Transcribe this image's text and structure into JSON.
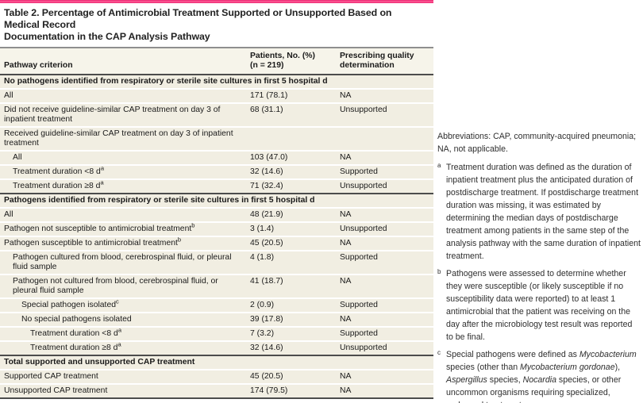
{
  "colors": {
    "accent": "#e8236f",
    "rule-gray": "#8f8f8f",
    "rule-dark": "#4c4c4c",
    "header-bg": "#f6f4ea",
    "row-bg": "#f1eee2",
    "text": "#1a1a1a"
  },
  "title": "Table 2. Percentage of Antimicrobial Treatment Supported or Unsupported Based on Medical Record\nDocumentation in the CAP Analysis Pathway",
  "table": {
    "columns": [
      {
        "label": "Pathway criterion"
      },
      {
        "label": "Patients, No. (%)\n(n = 219)"
      },
      {
        "label": "Prescribing quality\ndetermination"
      }
    ],
    "rows": [
      {
        "type": "section",
        "label": "No pathogens identified from respiratory or sterile site cultures in first 5 hospital d"
      },
      {
        "type": "row",
        "indent": 0,
        "label": "All",
        "value": "171 (78.1)",
        "det": "NA"
      },
      {
        "type": "row",
        "indent": 0,
        "label": "Did not receive guideline-similar CAP treatment on day 3 of inpatient treatment",
        "value": "68 (31.1)",
        "det": "Unsupported"
      },
      {
        "type": "row",
        "indent": 0,
        "label": "Received guideline-similar CAP treatment on day 3 of inpatient treatment",
        "value": "",
        "det": ""
      },
      {
        "type": "row",
        "indent": 1,
        "label": "All",
        "value": "103 (47.0)",
        "det": "NA"
      },
      {
        "type": "row",
        "indent": 1,
        "label": "Treatment duration <8 d",
        "sup": "a",
        "value": "32 (14.6)",
        "det": "Supported"
      },
      {
        "type": "row",
        "indent": 1,
        "label": "Treatment duration ≥8 d",
        "sup": "a",
        "value": "71 (32.4)",
        "det": "Unsupported"
      },
      {
        "type": "section",
        "rule": true,
        "label": "Pathogens identified from respiratory or sterile site cultures in first 5 hospital d"
      },
      {
        "type": "row",
        "indent": 0,
        "label": "All",
        "value": "48 (21.9)",
        "det": "NA"
      },
      {
        "type": "row",
        "indent": 0,
        "label": "Pathogen not susceptible to antimicrobial treatment",
        "sup": "b",
        "value": "3 (1.4)",
        "det": "Unsupported"
      },
      {
        "type": "row",
        "indent": 0,
        "label": "Pathogen susceptible to antimicrobial treatment",
        "sup": "b",
        "value": "45 (20.5)",
        "det": "NA"
      },
      {
        "type": "row",
        "indent": 1,
        "label": "Pathogen cultured from blood, cerebrospinal fluid, or pleural fluid sample",
        "value": "4 (1.8)",
        "det": "Supported"
      },
      {
        "type": "row",
        "indent": 1,
        "label": "Pathogen not cultured from blood, cerebrospinal fluid, or pleural fluid sample",
        "value": "41 (18.7)",
        "det": "NA"
      },
      {
        "type": "row",
        "indent": 2,
        "label": "Special pathogen isolated",
        "sup": "c",
        "value": "2 (0.9)",
        "det": "Supported"
      },
      {
        "type": "row",
        "indent": 2,
        "label": "No special pathogens isolated",
        "value": "39 (17.8)",
        "det": "NA"
      },
      {
        "type": "row",
        "indent": 3,
        "label": "Treatment duration <8 d",
        "sup": "a",
        "value": "7 (3.2)",
        "det": "Supported"
      },
      {
        "type": "row",
        "indent": 3,
        "label": "Treatment duration ≥8 d",
        "sup": "a",
        "value": "32 (14.6)",
        "det": "Unsupported"
      },
      {
        "type": "section",
        "rule": true,
        "label": "Total supported and unsupported CAP treatment"
      },
      {
        "type": "row",
        "indent": 0,
        "label": "Supported CAP treatment",
        "value": "45 (20.5)",
        "det": "NA"
      },
      {
        "type": "row",
        "indent": 0,
        "label": "Unsupported CAP treatment",
        "value": "174 (79.5)",
        "det": "NA"
      }
    ]
  },
  "footnotes": {
    "abbreviations": "Abbreviations: CAP, community-acquired pneumonia; NA, not applicable.",
    "items": [
      {
        "marker": "a",
        "segments": [
          {
            "t": "Treatment duration was defined as the duration of inpatient treatment plus the anticipated duration of postdischarge treatment. If postdischarge treatment duration was missing, it was estimated by determining the median days of postdischarge treatment among patients in the same step of the analysis pathway with the same duration of inpatient treatment."
          }
        ]
      },
      {
        "marker": "b",
        "segments": [
          {
            "t": "Pathogens were assessed to determine whether they were susceptible (or likely susceptible if no susceptibility data were reported) to at least 1 antimicrobial that the patient was receiving on the day after the microbiology test result was reported to be final."
          }
        ]
      },
      {
        "marker": "c",
        "segments": [
          {
            "t": "Special pathogens were defined as "
          },
          {
            "t": "Mycobacterium",
            "i": true
          },
          {
            "t": " species (other than "
          },
          {
            "t": "Mycobacterium gordonae",
            "i": true
          },
          {
            "t": "), "
          },
          {
            "t": "Aspergillus",
            "i": true
          },
          {
            "t": " species, "
          },
          {
            "t": "Nocardia",
            "i": true
          },
          {
            "t": " species, or other uncommon organisms requiring specialized, prolonged treatment."
          }
        ]
      }
    ]
  }
}
